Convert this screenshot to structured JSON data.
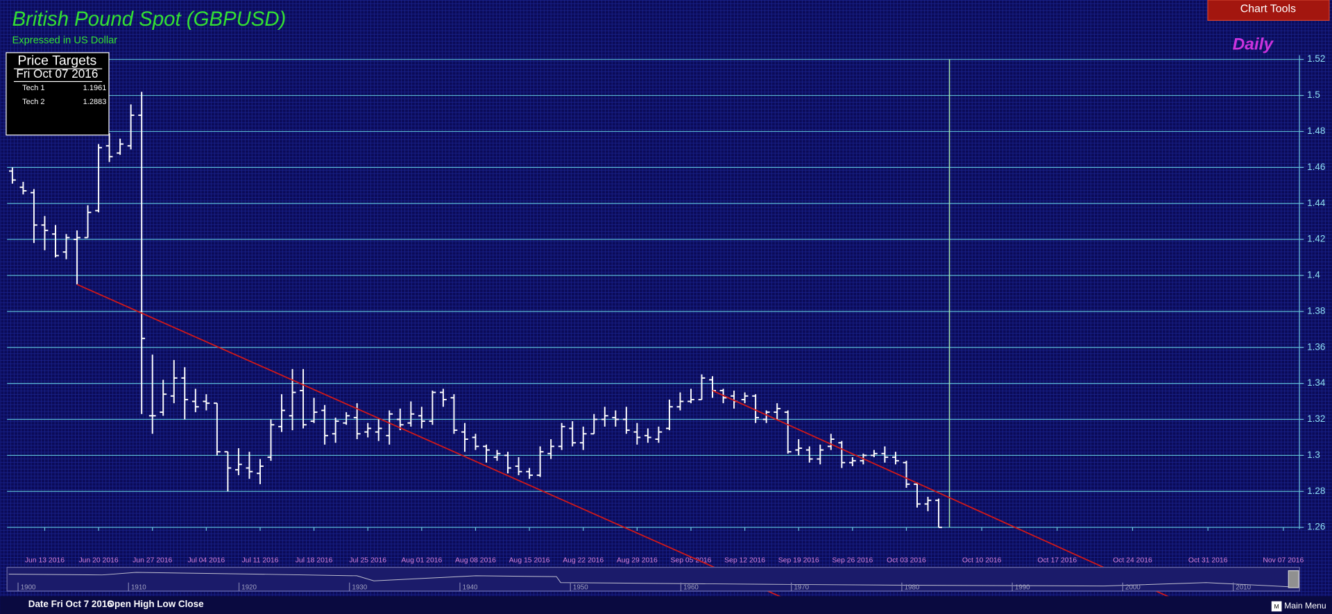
{
  "chart_data": {
    "type": "ohlc",
    "title": "British Pound Spot (GBPUSD)",
    "subtitle": "Expressed in US Dollar",
    "period": "Daily",
    "color": "#ffffff",
    "open": [
      1.458,
      1.449,
      1.446,
      1.428,
      1.423,
      1.413,
      1.42,
      1.421,
      1.436,
      1.472,
      1.468,
      1.472,
      1.489,
      1.322,
      1.324,
      1.333,
      1.343,
      1.33,
      1.33,
      1.329,
      1.302,
      1.292,
      1.293,
      1.29,
      1.299,
      1.316,
      1.322,
      1.336,
      1.319,
      1.325,
      1.312,
      1.318,
      1.321,
      1.313,
      1.313,
      1.311,
      1.32,
      1.318,
      1.322,
      1.319,
      1.335,
      1.332,
      1.313,
      1.31,
      1.305,
      1.299,
      1.3,
      1.294,
      1.291,
      1.289,
      1.301,
      1.305,
      1.315,
      1.307,
      1.312,
      1.32,
      1.321,
      1.32,
      1.313,
      1.311,
      1.309,
      1.315,
      1.327,
      1.33,
      1.331,
      1.342,
      1.336,
      1.333,
      1.331,
      1.333,
      1.32,
      1.324,
      1.324,
      1.303,
      1.303,
      1.298,
      1.305,
      1.307,
      1.296,
      1.297,
      1.3,
      1.301,
      1.299,
      1.296,
      1.284,
      1.273,
      1.275
    ],
    "high": [
      1.46,
      1.452,
      1.448,
      1.433,
      1.428,
      1.423,
      1.425,
      1.439,
      1.473,
      1.479,
      1.476,
      1.495,
      1.502,
      1.356,
      1.342,
      1.353,
      1.349,
      1.337,
      1.334,
      1.329,
      1.302,
      1.304,
      1.302,
      1.298,
      1.32,
      1.334,
      1.348,
      1.348,
      1.332,
      1.328,
      1.321,
      1.324,
      1.329,
      1.318,
      1.32,
      1.325,
      1.326,
      1.33,
      1.327,
      1.336,
      1.337,
      1.334,
      1.318,
      1.312,
      1.306,
      1.303,
      1.302,
      1.299,
      1.293,
      1.305,
      1.309,
      1.318,
      1.319,
      1.316,
      1.323,
      1.327,
      1.325,
      1.327,
      1.318,
      1.315,
      1.316,
      1.331,
      1.335,
      1.337,
      1.345,
      1.344,
      1.337,
      1.336,
      1.335,
      1.334,
      1.325,
      1.329,
      1.325,
      1.309,
      1.305,
      1.306,
      1.312,
      1.308,
      1.299,
      1.301,
      1.303,
      1.305,
      1.302,
      1.297,
      1.285,
      1.277,
      1.276
    ],
    "low": [
      1.451,
      1.445,
      1.418,
      1.414,
      1.41,
      1.409,
      1.395,
      1.421,
      1.435,
      1.463,
      1.467,
      1.47,
      1.323,
      1.312,
      1.322,
      1.329,
      1.32,
      1.324,
      1.325,
      1.3,
      1.28,
      1.289,
      1.287,
      1.284,
      1.297,
      1.313,
      1.314,
      1.315,
      1.318,
      1.306,
      1.307,
      1.317,
      1.309,
      1.31,
      1.308,
      1.306,
      1.314,
      1.316,
      1.315,
      1.317,
      1.327,
      1.312,
      1.302,
      1.303,
      1.296,
      1.297,
      1.29,
      1.289,
      1.287,
      1.288,
      1.298,
      1.303,
      1.305,
      1.303,
      1.312,
      1.316,
      1.316,
      1.312,
      1.306,
      1.307,
      1.307,
      1.314,
      1.325,
      1.329,
      1.331,
      1.332,
      1.329,
      1.326,
      1.329,
      1.318,
      1.318,
      1.32,
      1.301,
      1.3,
      1.296,
      1.295,
      1.303,
      1.293,
      1.294,
      1.295,
      1.299,
      1.296,
      1.295,
      1.282,
      1.271,
      1.269,
      1.26
    ],
    "close": [
      1.453,
      1.447,
      1.428,
      1.425,
      1.411,
      1.421,
      1.421,
      1.435,
      1.471,
      1.466,
      1.473,
      1.489,
      1.365,
      1.322,
      1.334,
      1.343,
      1.331,
      1.327,
      1.329,
      1.302,
      1.293,
      1.295,
      1.291,
      1.294,
      1.317,
      1.325,
      1.335,
      1.317,
      1.324,
      1.311,
      1.319,
      1.322,
      1.312,
      1.315,
      1.315,
      1.323,
      1.317,
      1.323,
      1.319,
      1.335,
      1.331,
      1.314,
      1.309,
      1.305,
      1.303,
      1.301,
      1.293,
      1.291,
      1.289,
      1.302,
      1.305,
      1.316,
      1.307,
      1.312,
      1.32,
      1.322,
      1.32,
      1.314,
      1.31,
      1.31,
      1.313,
      1.327,
      1.33,
      1.331,
      1.343,
      1.336,
      1.332,
      1.33,
      1.333,
      1.321,
      1.324,
      1.326,
      1.302,
      1.304,
      1.298,
      1.303,
      1.309,
      1.296,
      1.297,
      1.3,
      1.301,
      1.299,
      1.297,
      1.284,
      1.273,
      1.275,
      1.26
    ],
    "xlim": [
      -0.5,
      119.5
    ],
    "xticks": [
      {
        "value": 3,
        "label": "Jun 13 2016"
      },
      {
        "value": 8,
        "label": "Jun 20 2016"
      },
      {
        "value": 13,
        "label": "Jun 27 2016"
      },
      {
        "value": 18,
        "label": "Jul 04 2016"
      },
      {
        "value": 23,
        "label": "Jul 11 2016"
      },
      {
        "value": 28,
        "label": "Jul 18 2016"
      },
      {
        "value": 33,
        "label": "Jul 25 2016"
      },
      {
        "value": 38,
        "label": "Aug 01 2016"
      },
      {
        "value": 43,
        "label": "Aug 08 2016"
      },
      {
        "value": 48,
        "label": "Aug 15 2016"
      },
      {
        "value": 53,
        "label": "Aug 22 2016"
      },
      {
        "value": 58,
        "label": "Aug 29 2016"
      },
      {
        "value": 63,
        "label": "Sep 05 2016"
      },
      {
        "value": 68,
        "label": "Sep 12 2016"
      },
      {
        "value": 73,
        "label": "Sep 19 2016"
      },
      {
        "value": 78,
        "label": "Sep 26 2016"
      },
      {
        "value": 83,
        "label": "Oct 03 2016"
      },
      {
        "value": 90,
        "label": "Oct 10 2016"
      },
      {
        "value": 97,
        "label": "Oct 17 2016"
      },
      {
        "value": 104,
        "label": "Oct 24 2016"
      },
      {
        "value": 111,
        "label": "Oct 31 2016"
      },
      {
        "value": 118,
        "label": "Nov 07 2016"
      }
    ],
    "ylim": [
      1.26,
      1.52
    ],
    "yticks": [
      1.26,
      1.28,
      1.3,
      1.32,
      1.34,
      1.36,
      1.38,
      1.4,
      1.42,
      1.44,
      1.46,
      1.48,
      1.5,
      1.52
    ],
    "grid": true,
    "trendline_color": "#d01818",
    "trendlines": [
      {
        "x": [
          6,
          73
        ],
        "y": [
          1.395,
          1.217
        ]
      },
      {
        "x": [
          65,
          109
        ],
        "y": [
          1.336,
          1.217
        ]
      }
    ],
    "current_line": {
      "x": 87,
      "color": "#a8e8a8"
    },
    "navigator": {
      "xlim": [
        1899,
        2016
      ],
      "xticks": [
        1900,
        1910,
        1920,
        1930,
        1940,
        1950,
        1960,
        1970,
        1980,
        1990,
        2000,
        2010
      ]
    }
  },
  "price_targets": {
    "title": "Price Targets",
    "date": "Fri Oct 07 2016",
    "rows": [
      [
        "Tech 1",
        "1.1961"
      ],
      [
        "Tech 2",
        "1.2883"
      ]
    ]
  },
  "toolbar": {
    "chart_tools": "Chart Tools",
    "main_menu_icon": "M",
    "main_menu": "Main Menu"
  },
  "status": {
    "date": "Date Fri Oct 7 2016",
    "fields": "Open High Low Close"
  }
}
